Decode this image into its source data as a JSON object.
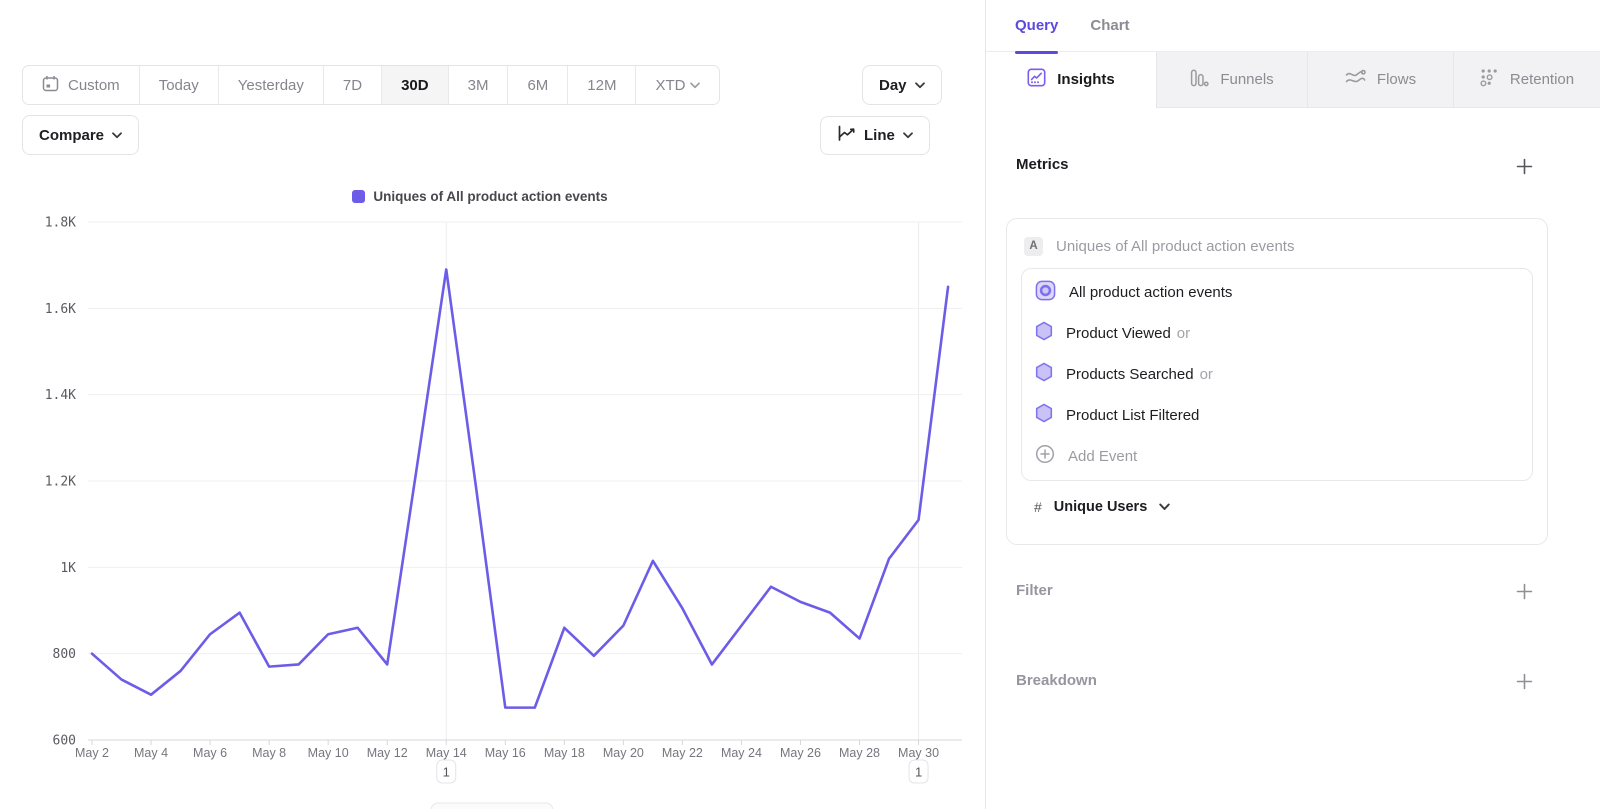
{
  "accent": "#6C5CE8",
  "toolbar": {
    "ranges": [
      "Custom",
      "Today",
      "Yesterday",
      "7D",
      "30D",
      "3M",
      "6M",
      "12M",
      "XTD"
    ],
    "selected_range": "30D",
    "granularity": "Day",
    "compare_label": "Compare",
    "chart_type": "Line"
  },
  "chart_data": {
    "type": "line",
    "series_name": "Uniques of All product action events",
    "x": [
      "May 2",
      "May 3",
      "May 4",
      "May 5",
      "May 6",
      "May 7",
      "May 8",
      "May 9",
      "May 10",
      "May 11",
      "May 12",
      "May 13",
      "May 14",
      "May 15",
      "May 16",
      "May 17",
      "May 18",
      "May 19",
      "May 20",
      "May 21",
      "May 22",
      "May 23",
      "May 24",
      "May 25",
      "May 26",
      "May 27",
      "May 28",
      "May 29",
      "May 30",
      "May 31"
    ],
    "values": [
      800,
      740,
      705,
      760,
      845,
      895,
      770,
      775,
      845,
      860,
      775,
      1230,
      1690,
      1190,
      675,
      675,
      860,
      795,
      865,
      1015,
      905,
      775,
      865,
      955,
      920,
      895,
      835,
      1020,
      1110,
      1650
    ],
    "ylim": [
      600,
      1800
    ],
    "yticks": [
      {
        "v": 1800,
        "label": "1.8K"
      },
      {
        "v": 1600,
        "label": "1.6K"
      },
      {
        "v": 1400,
        "label": "1.4K"
      },
      {
        "v": 1200,
        "label": "1.2K"
      },
      {
        "v": 1000,
        "label": "1K"
      },
      {
        "v": 800,
        "label": "800"
      },
      {
        "v": 600,
        "label": "600"
      }
    ],
    "x_label_every": 2,
    "vertical_gridlines": [
      "May 14",
      "May 30"
    ],
    "annotations": [
      {
        "x": "May 14",
        "label": "1"
      },
      {
        "x": "May 30",
        "label": "1"
      }
    ],
    "line_color": "#6C5CE8",
    "legend_position": "top",
    "grid": true
  },
  "query_panel": {
    "tabs": [
      {
        "label": "Query"
      },
      {
        "label": "Chart"
      }
    ],
    "report_tabs": [
      {
        "label": "Insights"
      },
      {
        "label": "Funnels"
      },
      {
        "label": "Flows"
      },
      {
        "label": "Retention"
      }
    ],
    "metrics": {
      "title": "Metrics",
      "group_badge": "A",
      "group_label": "Uniques of All product action events",
      "events": [
        {
          "label": "All product action events",
          "suffix": ""
        },
        {
          "label": "Product Viewed",
          "suffix": "or"
        },
        {
          "label": "Products Searched",
          "suffix": "or"
        },
        {
          "label": "Product List Filtered",
          "suffix": ""
        }
      ],
      "add_event_label": "Add Event",
      "measurement": {
        "symbol": "#",
        "label": "Unique Users"
      }
    },
    "filter": {
      "title": "Filter"
    },
    "breakdown": {
      "title": "Breakdown"
    }
  }
}
